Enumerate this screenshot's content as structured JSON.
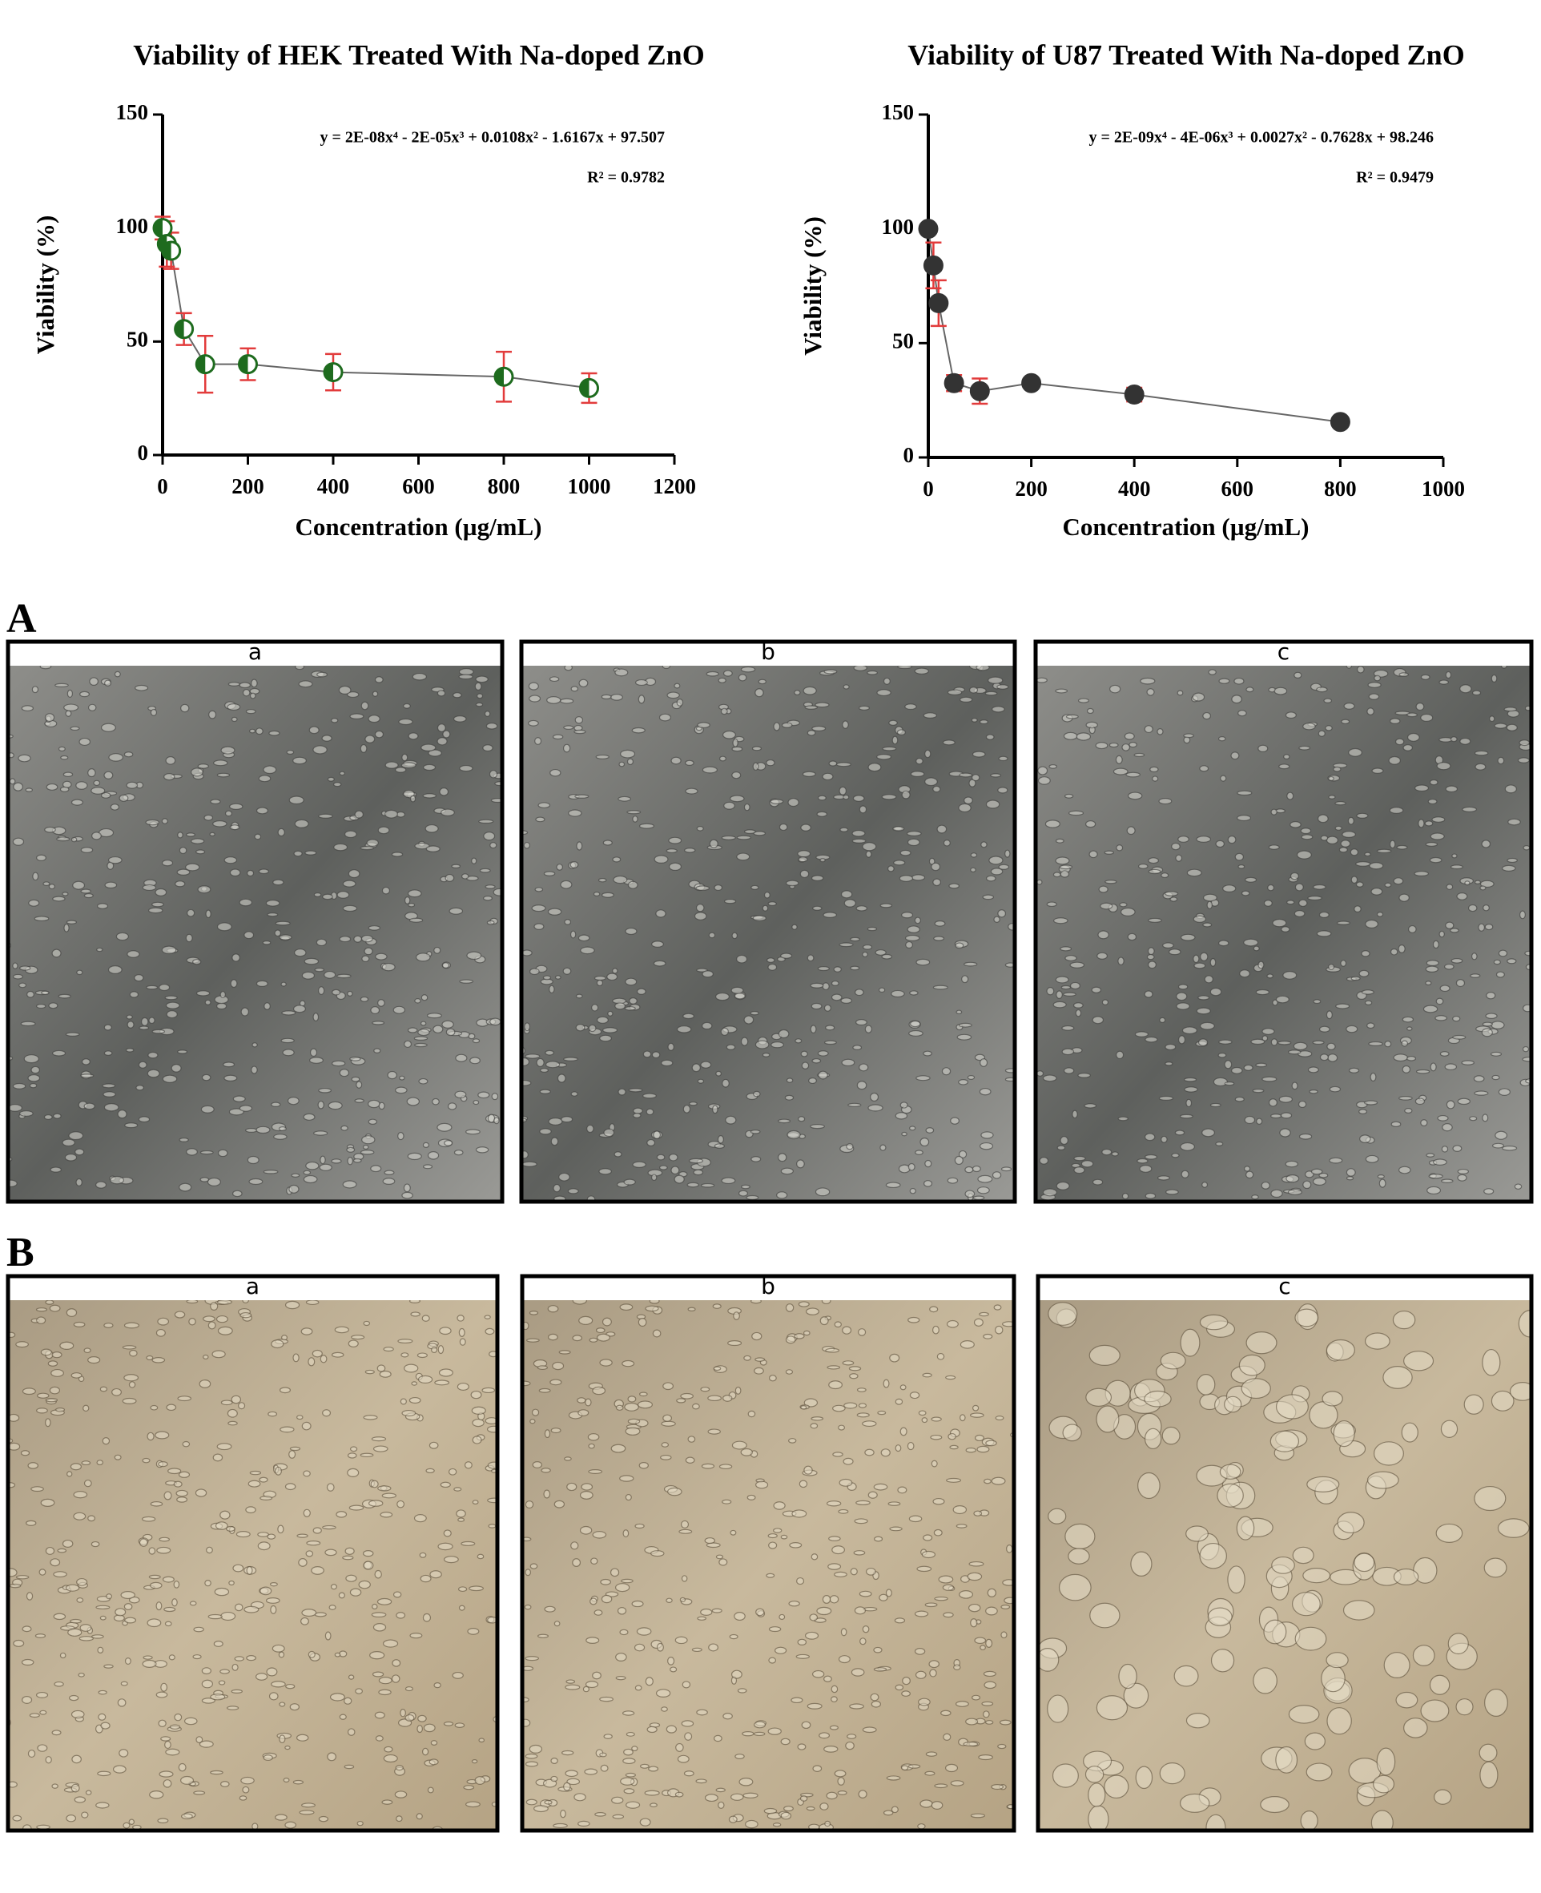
{
  "chart_data": [
    {
      "type": "line",
      "title": "Viability of HEK Treated With Na-doped ZnO",
      "x_label": "Concentration (µg/mL)",
      "y_label": "Viability (%)",
      "equation": "y = 2E-08x⁴ - 2E-05x³ + 0.0108x² - 1.6167x + 97.507",
      "r_squared": "R² = 0.9782",
      "x": [
        0,
        10,
        20,
        50,
        100,
        200,
        400,
        800,
        1000
      ],
      "series": [
        {
          "color": "#1e6b1e",
          "line_color": "#666666",
          "error_color": "#e23b3b",
          "marker": "half",
          "values": [
            100,
            93,
            90,
            55.5,
            40,
            40,
            36.5,
            34.5,
            29.5
          ],
          "errors": [
            5,
            10,
            8,
            7,
            12.5,
            7,
            8,
            11,
            6.5
          ]
        }
      ],
      "xlim": [
        0,
        1200
      ],
      "xticks": [
        0,
        200,
        400,
        600,
        800,
        1000,
        1200
      ],
      "ylim": [
        0,
        150
      ],
      "yticks": [
        0,
        50,
        100,
        150
      ]
    },
    {
      "type": "line",
      "title": "Viability of U87 Treated With Na-doped ZnO",
      "x_label": "Concentration (µg/mL)",
      "y_label": "Viability (%)",
      "equation": "y = 2E-09x⁴ - 4E-06x³ + 0.0027x² - 0.7628x + 98.246",
      "r_squared": "R² = 0.9479",
      "x": [
        0,
        10,
        20,
        50,
        100,
        200,
        400,
        800
      ],
      "series": [
        {
          "color": "#333333",
          "line_color": "#666666",
          "error_color": "#e23b3b",
          "marker": "filled",
          "values": [
            100,
            84,
            67.5,
            32.5,
            29,
            32.5,
            27.5,
            15.5
          ],
          "errors": [
            null,
            10,
            10,
            3.5,
            5.5,
            null,
            3,
            null
          ]
        }
      ],
      "xlim": [
        0,
        1000
      ],
      "xticks": [
        0,
        200,
        400,
        600,
        800,
        1000
      ],
      "ylim": [
        0,
        150
      ],
      "yticks": [
        0,
        50,
        100,
        150
      ]
    }
  ],
  "panels": [
    {
      "label": "A",
      "images": [
        "a",
        "b",
        "c"
      ]
    },
    {
      "label": "B",
      "images": [
        "a",
        "b",
        "c"
      ]
    }
  ]
}
